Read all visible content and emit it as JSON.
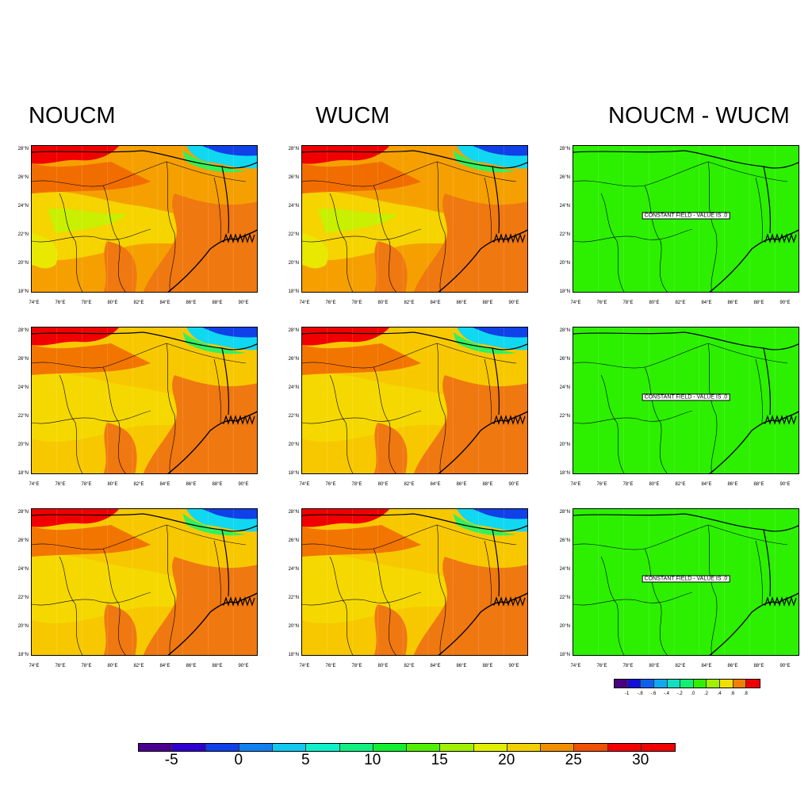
{
  "titles": {
    "col1": "NOUCM",
    "col2": "WUCM",
    "col3": "NOUCM - WUCM"
  },
  "lat_ticks": [
    "28°N",
    "26°N",
    "24°N",
    "22°N",
    "20°N",
    "18°N"
  ],
  "lon_ticks": [
    "74°E",
    "76°E",
    "78°E",
    "80°E",
    "82°E",
    "84°E",
    "86°E",
    "88°E",
    "90°E"
  ],
  "constant_field_label": "CONSTANT FIELD - VALUE IS .0",
  "small_colorbar": {
    "labels": [
      "-1",
      "-.8",
      "-.6",
      "-.4",
      "-.2",
      ".0",
      ".2",
      ".4",
      ".6",
      ".8"
    ],
    "colors": [
      "#4b0082",
      "#1010d8",
      "#1060f0",
      "#10a8f0",
      "#10e0c0",
      "#10f070",
      "#30f000",
      "#a0f000",
      "#f0e000",
      "#f08000",
      "#f00000"
    ]
  },
  "main_colorbar": {
    "labels": [
      "-5",
      "0",
      "5",
      "10",
      "15",
      "20",
      "25",
      "30"
    ],
    "colors": [
      "#4b0090",
      "#3000d0",
      "#1040e8",
      "#1080f0",
      "#10c8f0",
      "#10f0c8",
      "#10f080",
      "#10f030",
      "#50f000",
      "#a0f000",
      "#e0f000",
      "#f0d000",
      "#f09000",
      "#f05000",
      "#f00000",
      "#f00000"
    ]
  },
  "chart_data": {
    "type": "heatmap",
    "rows": 3,
    "columns": [
      "NOUCM",
      "WUCM",
      "NOUCM - WUCM"
    ],
    "lon_range": [
      73.5,
      91
    ],
    "lat_range": [
      17.8,
      28.3
    ],
    "difference_value": 0.0
  }
}
